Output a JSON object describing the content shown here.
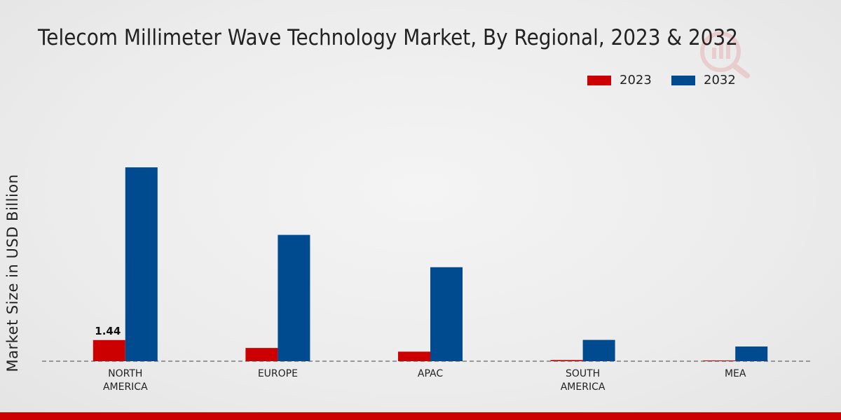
{
  "chart_data": {
    "type": "bar",
    "title": "Telecom Millimeter Wave Technology Market, By Regional, 2023 & 2032",
    "xlabel": "",
    "ylabel": "Market Size in USD Billion",
    "ylim": [
      0,
      15
    ],
    "categories": [
      "NORTH\nAMERICA",
      "EUROPE",
      "APAC",
      "SOUTH\nAMERICA",
      "MEA"
    ],
    "series": [
      {
        "name": "2023",
        "color": "#cc0000",
        "values": [
          1.44,
          0.9,
          0.65,
          0.08,
          0.05
        ]
      },
      {
        "name": "2032",
        "color": "#004a8f",
        "values": [
          13.2,
          8.6,
          6.4,
          1.45,
          1.0
        ]
      }
    ],
    "data_labels": [
      {
        "series": 0,
        "index": 0,
        "text": "1.44"
      }
    ],
    "legend_position": "top-right",
    "grid": false
  }
}
